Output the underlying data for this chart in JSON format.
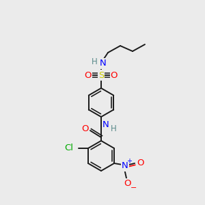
{
  "background_color": "#ebebeb",
  "bond_color": "#1a1a1a",
  "bond_lw": 1.4,
  "atom_colors": {
    "N": "#0000ff",
    "O": "#ff0000",
    "S": "#cccc00",
    "Cl": "#00aa00",
    "H": "#5a8a8a",
    "C": "#1a1a1a"
  },
  "font_size": 9.5,
  "font_size_small": 8.5,
  "fig_width": 3.0,
  "fig_height": 3.0,
  "dpi": 100
}
